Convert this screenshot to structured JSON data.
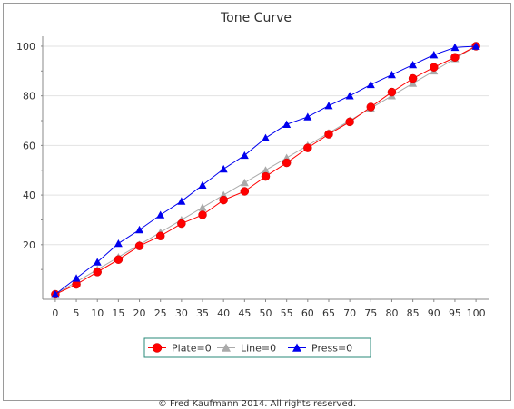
{
  "chart_data": {
    "type": "line",
    "title": "Tone Curve",
    "xlabel": "",
    "ylabel": "",
    "x": [
      0,
      5,
      10,
      15,
      20,
      25,
      30,
      35,
      40,
      45,
      50,
      55,
      60,
      65,
      70,
      75,
      80,
      85,
      90,
      95,
      100
    ],
    "xticks": [
      0,
      5,
      10,
      15,
      20,
      25,
      30,
      35,
      40,
      45,
      50,
      55,
      60,
      65,
      70,
      75,
      80,
      85,
      90,
      95,
      100
    ],
    "yticks": [
      20,
      40,
      60,
      80,
      100
    ],
    "xlim": [
      -3,
      103
    ],
    "ylim": [
      -2,
      104
    ],
    "grid": true,
    "legend_position": "bottom",
    "series": [
      {
        "name": "Plate=0",
        "color": "#ff0000",
        "marker": "circle",
        "values": [
          0,
          4,
          9,
          14,
          19.5,
          23.5,
          28.5,
          32,
          38,
          41.5,
          47.5,
          53,
          59,
          64.5,
          69.5,
          75.5,
          81.5,
          87,
          91.5,
          95.5,
          100
        ]
      },
      {
        "name": "Line=0",
        "color": "#aaaaaa",
        "marker": "triangle",
        "values": [
          0,
          5,
          10,
          15,
          20,
          25,
          30,
          35,
          40,
          45,
          50,
          55,
          60,
          65,
          70,
          75,
          80,
          85,
          90,
          95,
          100
        ]
      },
      {
        "name": "Press=0",
        "color": "#0000ee",
        "marker": "triangle",
        "values": [
          0,
          6.5,
          13,
          20.5,
          26,
          32,
          37.5,
          44,
          50.5,
          56,
          63,
          68.5,
          71.5,
          76,
          80,
          84.5,
          88.5,
          92.5,
          96.5,
          99.5,
          100
        ]
      }
    ]
  },
  "footer": "© Fred Kaufmann 2014. All rights reserved."
}
